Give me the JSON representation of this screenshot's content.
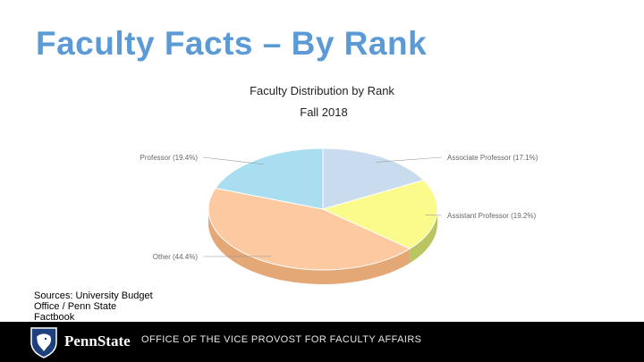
{
  "slide": {
    "title": "Faculty Facts – By Rank",
    "sources": "Sources: University Budget\nOffice / Penn State\nFactbook"
  },
  "footer": {
    "brand": "PennState",
    "office": "OFFICE OF THE VICE PROVOST FOR FACULTY AFFAIRS",
    "logo_icon": "nittany-lion-shield-icon"
  },
  "chart_data": {
    "type": "pie",
    "title": "Faculty Distribution by Rank",
    "subtitle": "Fall 2018",
    "slices": [
      {
        "label": "Associate Professor (17.1%)",
        "value": 17.1,
        "color": "#c9dcee",
        "side": "#a7bccf"
      },
      {
        "label": "Assistant Professor (19.2%)",
        "value": 19.2,
        "color": "#fbfb8c",
        "side": "#b9c560"
      },
      {
        "label": "Other (44.4%)",
        "value": 44.4,
        "color": "#fcc9a0",
        "side": "#e4a877"
      },
      {
        "label": "Professor (19.4%)",
        "value": 19.4,
        "color": "#a8def0",
        "side": "#7fb9cc"
      }
    ],
    "legend": "none"
  }
}
